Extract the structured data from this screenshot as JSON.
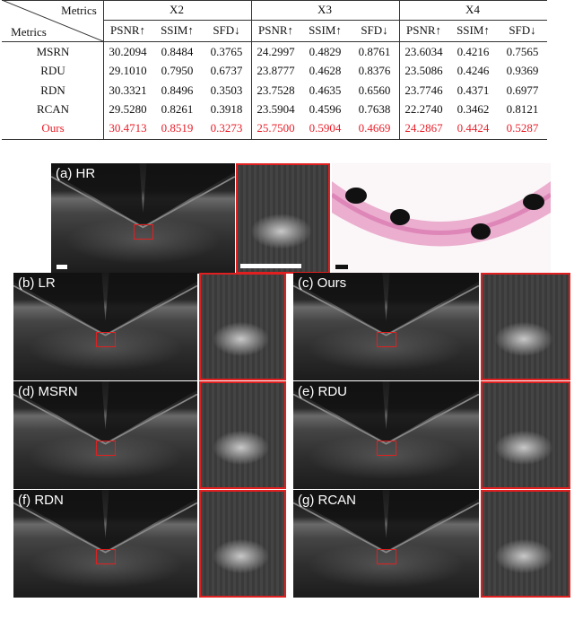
{
  "table": {
    "corner_top": "Metrics",
    "corner_bottom": "Metrics",
    "groups": [
      "X2",
      "X3",
      "X4"
    ],
    "metrics": [
      "PSNR↑",
      "SSIM↑",
      "SFD↓"
    ],
    "highlight_color": "#e8202a",
    "rows": [
      {
        "method": "MSRN",
        "values": [
          "30.2094",
          "0.8484",
          "0.3765",
          "24.2997",
          "0.4829",
          "0.8761",
          "23.6034",
          "0.4216",
          "0.7565"
        ]
      },
      {
        "method": "RDU",
        "values": [
          "29.1010",
          "0.7950",
          "0.6737",
          "23.8777",
          "0.4628",
          "0.8376",
          "23.5086",
          "0.4246",
          "0.9369"
        ]
      },
      {
        "method": "RDN",
        "values": [
          "30.3321",
          "0.8496",
          "0.3503",
          "23.7528",
          "0.4635",
          "0.6560",
          "23.7746",
          "0.4371",
          "0.6977"
        ]
      },
      {
        "method": "RCAN",
        "values": [
          "29.5280",
          "0.8261",
          "0.3918",
          "23.5904",
          "0.4596",
          "0.7638",
          "22.2740",
          "0.3462",
          "0.8121"
        ]
      },
      {
        "method": "Ours",
        "highlight": true,
        "values": [
          "30.4713",
          "0.8519",
          "0.3273",
          "25.7500",
          "0.5904",
          "0.4669",
          "24.2867",
          "0.4424",
          "0.5287"
        ]
      }
    ]
  },
  "panels": [
    {
      "label": "(a) HR"
    },
    {
      "label": "(b) LR"
    },
    {
      "label": "(c) Ours"
    },
    {
      "label": "(d) MSRN"
    },
    {
      "label": "(e) RDU"
    },
    {
      "label": "(f) RDN"
    },
    {
      "label": "(g) RCAN"
    }
  ]
}
